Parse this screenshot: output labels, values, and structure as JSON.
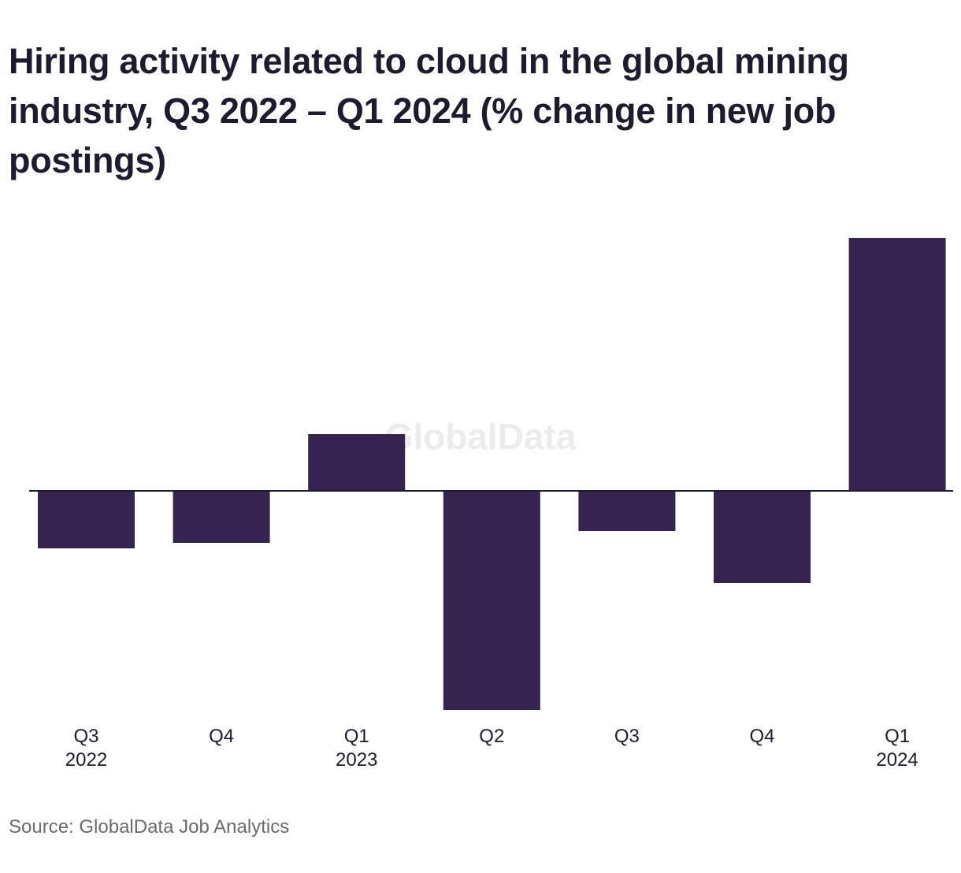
{
  "title": "Hiring activity related to cloud in the global mining industry, Q3 2022 – Q1 2024 (% change in new job postings)",
  "source": "Source: GlobalData Job Analytics",
  "watermark": "GlobalData",
  "colors": {
    "bar": "#352450",
    "title": "#1c1c2e",
    "axis": "#1c1c2e",
    "tick_text": "#1c1c2e",
    "source_text": "#6b6b6b",
    "watermark": "#ececec"
  },
  "chart_data": {
    "type": "bar",
    "categories": [
      [
        "Q3",
        "2022"
      ],
      [
        "Q4"
      ],
      [
        "Q1",
        "2023"
      ],
      [
        "Q2"
      ],
      [
        "Q3"
      ],
      [
        "Q4"
      ],
      [
        "Q1",
        "2024"
      ]
    ],
    "values": [
      -7.3,
      -6.6,
      7.2,
      -27.8,
      -5.1,
      -11.7,
      32.1
    ],
    "ylim": [
      -28,
      33
    ],
    "xlabel": "",
    "ylabel": "",
    "grid": false,
    "legend": "none"
  }
}
